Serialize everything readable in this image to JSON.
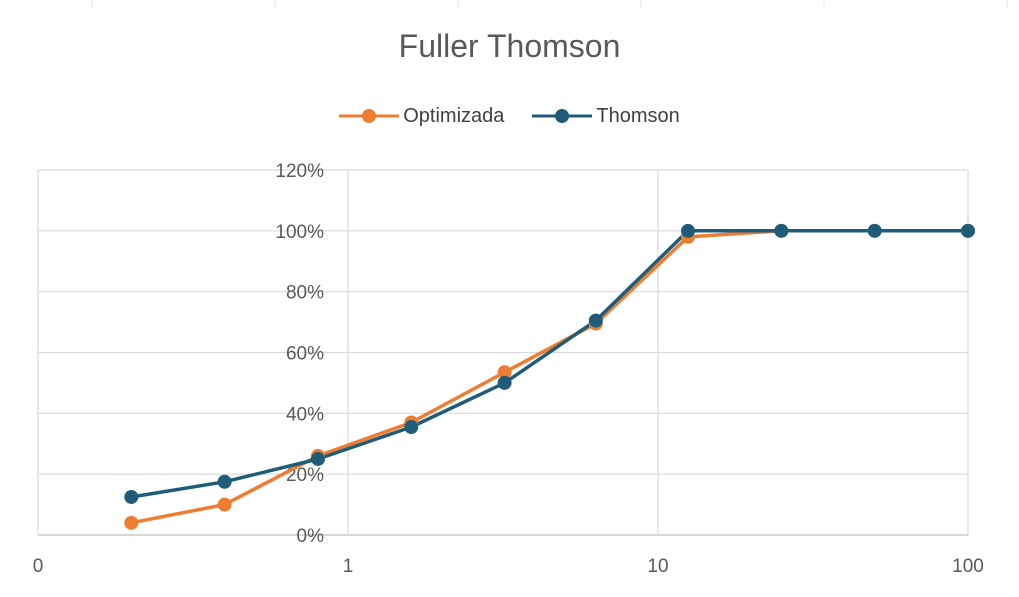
{
  "chart_data": {
    "type": "line",
    "title": "Fuller Thomson",
    "x_scale": "log",
    "x_ticks": [
      "0",
      "1",
      "10",
      "100"
    ],
    "y_ticks": [
      "0%",
      "20%",
      "40%",
      "60%",
      "80%",
      "100%",
      "120%"
    ],
    "ylim": [
      0,
      1.2
    ],
    "xlim": [
      0.1,
      100
    ],
    "legend_position": "top",
    "grid": true,
    "x": [
      0.2,
      0.4,
      0.8,
      1.6,
      3.2,
      6.3,
      12.5,
      25,
      50,
      100
    ],
    "series": [
      {
        "name": "Optimizada",
        "color": "#ED7D31",
        "values": [
          0.04,
          0.1,
          0.26,
          0.37,
          0.535,
          0.695,
          0.98,
          1.0,
          1.0,
          1.0
        ]
      },
      {
        "name": "Thomson",
        "color": "#1F5C7A",
        "values": [
          0.125,
          0.175,
          0.25,
          0.355,
          0.5,
          0.705,
          1.0,
          1.0,
          1.0,
          1.0
        ]
      }
    ]
  }
}
